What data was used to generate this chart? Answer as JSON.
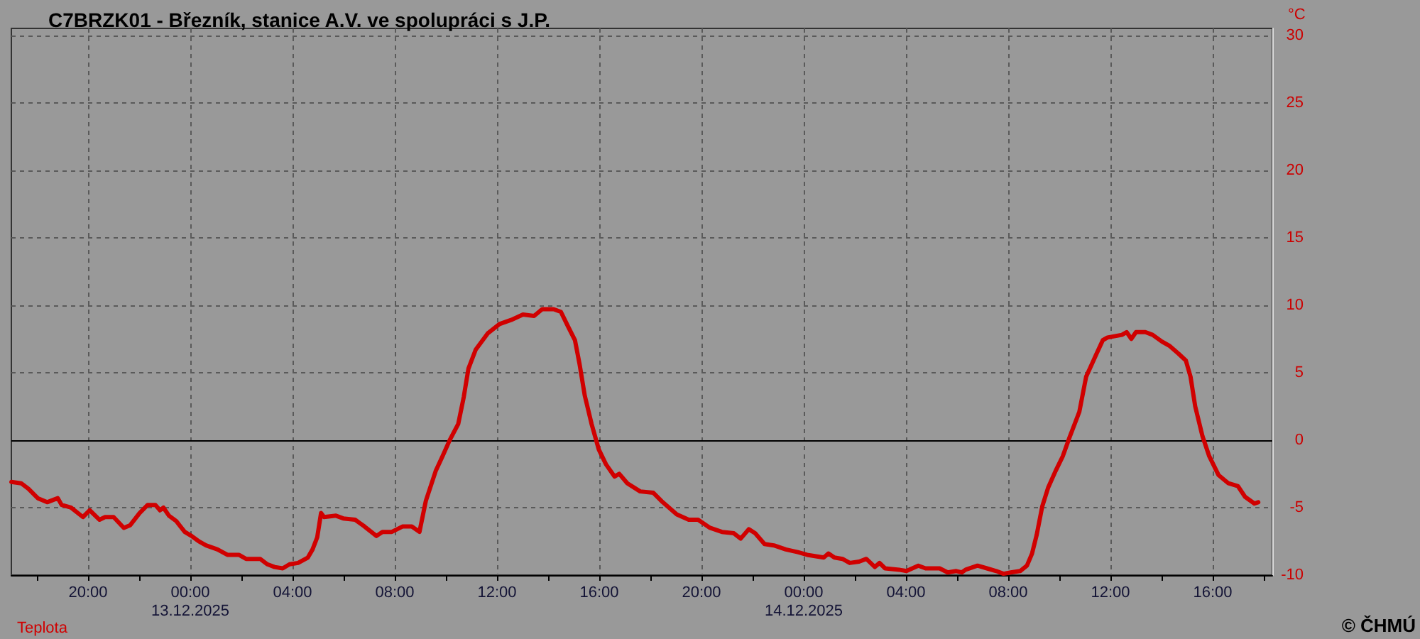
{
  "chart_data": {
    "type": "line",
    "title": "C7BRZK01 - Březník, stanice A.V. ve spolupráci s J.P.",
    "ylabel": "°C",
    "annotations": [
      "© ČHMÚ"
    ],
    "xlim": [
      "2025-12-12T17:00",
      "2025-12-14T18:20"
    ],
    "xticks": [
      {
        "value": "2025-12-12T18:00",
        "label": null
      },
      {
        "value": "2025-12-12T20:00",
        "label": "20:00"
      },
      {
        "value": "2025-12-12T22:00",
        "label": null
      },
      {
        "value": "2025-12-13T00:00",
        "label": "00:00\n13.12.2025"
      },
      {
        "value": "2025-12-13T02:00",
        "label": null
      },
      {
        "value": "2025-12-13T04:00",
        "label": "04:00"
      },
      {
        "value": "2025-12-13T06:00",
        "label": null
      },
      {
        "value": "2025-12-13T08:00",
        "label": "08:00"
      },
      {
        "value": "2025-12-13T10:00",
        "label": null
      },
      {
        "value": "2025-12-13T12:00",
        "label": "12:00"
      },
      {
        "value": "2025-12-13T14:00",
        "label": null
      },
      {
        "value": "2025-12-13T16:00",
        "label": "16:00"
      },
      {
        "value": "2025-12-13T18:00",
        "label": null
      },
      {
        "value": "2025-12-13T20:00",
        "label": "20:00"
      },
      {
        "value": "2025-12-13T22:00",
        "label": null
      },
      {
        "value": "2025-12-14T00:00",
        "label": "00:00\n14.12.2025"
      },
      {
        "value": "2025-12-14T02:00",
        "label": null
      },
      {
        "value": "2025-12-14T04:00",
        "label": "04:00"
      },
      {
        "value": "2025-12-14T06:00",
        "label": null
      },
      {
        "value": "2025-12-14T08:00",
        "label": "08:00"
      },
      {
        "value": "2025-12-14T10:00",
        "label": null
      },
      {
        "value": "2025-12-14T12:00",
        "label": "12:00"
      },
      {
        "value": "2025-12-14T14:00",
        "label": null
      },
      {
        "value": "2025-12-14T16:00",
        "label": "16:00"
      },
      {
        "value": "2025-12-14T18:00",
        "label": null
      }
    ],
    "ylim": [
      -10,
      30.5
    ],
    "yticks": [
      -10,
      -5,
      0,
      5,
      10,
      15,
      20,
      25,
      30
    ],
    "grid": true,
    "legend": "bottom left",
    "marker": "none",
    "line_style": "solid",
    "ref_lines": [
      {
        "axis": "y",
        "value": 0,
        "color": "#000000"
      }
    ],
    "series": [
      {
        "name": "Teplota",
        "color": "#d00000",
        "x": [
          "2025-12-12T17:00",
          "2025-12-12T17:23",
          "2025-12-12T17:40",
          "2025-12-12T18:02",
          "2025-12-12T18:24",
          "2025-12-12T18:49",
          "2025-12-12T18:58",
          "2025-12-12T19:20",
          "2025-12-12T19:48",
          "2025-12-12T20:04",
          "2025-12-12T20:27",
          "2025-12-12T20:40",
          "2025-12-12T21:00",
          "2025-12-12T21:24",
          "2025-12-12T21:39",
          "2025-12-12T22:01",
          "2025-12-12T22:20",
          "2025-12-12T22:38",
          "2025-12-12T22:49",
          "2025-12-12T22:57",
          "2025-12-12T23:10",
          "2025-12-12T23:27",
          "2025-12-12T23:47",
          "2025-12-13T00:03",
          "2025-12-13T00:20",
          "2025-12-13T00:37",
          "2025-12-13T01:04",
          "2025-12-13T01:27",
          "2025-12-13T01:54",
          "2025-12-13T02:11",
          "2025-12-13T02:44",
          "2025-12-13T03:01",
          "2025-12-13T03:18",
          "2025-12-13T03:37",
          "2025-12-13T03:53",
          "2025-12-13T04:13",
          "2025-12-13T04:36",
          "2025-12-13T04:47",
          "2025-12-13T04:58",
          "2025-12-13T05:07",
          "2025-12-13T05:14",
          "2025-12-13T05:42",
          "2025-12-13T05:59",
          "2025-12-13T06:27",
          "2025-12-13T06:49",
          "2025-12-13T07:17",
          "2025-12-13T07:31",
          "2025-12-13T07:53",
          "2025-12-13T08:18",
          "2025-12-13T08:40",
          "2025-12-13T08:58",
          "2025-12-13T09:13",
          "2025-12-13T09:36",
          "2025-12-13T09:52",
          "2025-12-13T10:09",
          "2025-12-13T10:29",
          "2025-12-13T10:42",
          "2025-12-13T10:53",
          "2025-12-13T11:10",
          "2025-12-13T11:38",
          "2025-12-13T12:06",
          "2025-12-13T12:33",
          "2025-12-13T13:01",
          "2025-12-13T13:27",
          "2025-12-13T13:46",
          "2025-12-13T14:13",
          "2025-12-13T14:30",
          "2025-12-13T14:47",
          "2025-12-13T15:03",
          "2025-12-13T15:14",
          "2025-12-13T15:26",
          "2025-12-13T15:42",
          "2025-12-13T15:59",
          "2025-12-13T16:16",
          "2025-12-13T16:36",
          "2025-12-13T16:47",
          "2025-12-13T17:06",
          "2025-12-13T17:36",
          "2025-12-13T18:07",
          "2025-12-13T18:29",
          "2025-12-13T19:02",
          "2025-12-13T19:30",
          "2025-12-13T19:52",
          "2025-12-13T20:20",
          "2025-12-13T20:48",
          "2025-12-13T21:16",
          "2025-12-13T21:32",
          "2025-12-13T21:51",
          "2025-12-13T22:06",
          "2025-12-13T22:28",
          "2025-12-13T22:50",
          "2025-12-13T23:18",
          "2025-12-13T23:46",
          "2025-12-14T00:08",
          "2025-12-14T00:47",
          "2025-12-14T00:58",
          "2025-12-14T01:12",
          "2025-12-14T01:31",
          "2025-12-14T01:48",
          "2025-12-14T02:10",
          "2025-12-14T02:27",
          "2025-12-14T02:47",
          "2025-12-14T02:58",
          "2025-12-14T03:11",
          "2025-12-14T03:44",
          "2025-12-14T04:01",
          "2025-12-14T04:29",
          "2025-12-14T04:46",
          "2025-12-14T05:19",
          "2025-12-14T05:38",
          "2025-12-14T05:58",
          "2025-12-14T06:11",
          "2025-12-14T06:20",
          "2025-12-14T06:48",
          "2025-12-14T07:10",
          "2025-12-14T07:32",
          "2025-12-14T07:49",
          "2025-12-14T08:06",
          "2025-12-14T08:28",
          "2025-12-14T08:44",
          "2025-12-14T08:56",
          "2025-12-14T09:07",
          "2025-12-14T09:20",
          "2025-12-14T09:34",
          "2025-12-14T09:51",
          "2025-12-14T10:08",
          "2025-12-14T10:24",
          "2025-12-14T10:47",
          "2025-12-14T11:03",
          "2025-12-14T11:26",
          "2025-12-14T11:42",
          "2025-12-14T11:53",
          "2025-12-14T12:27",
          "2025-12-14T12:38",
          "2025-12-14T12:49",
          "2025-12-14T13:00",
          "2025-12-14T13:22",
          "2025-12-14T13:39",
          "2025-12-14T14:01",
          "2025-12-14T14:18",
          "2025-12-14T14:40",
          "2025-12-14T14:57",
          "2025-12-14T15:08",
          "2025-12-14T15:19",
          "2025-12-14T15:36",
          "2025-12-14T15:52",
          "2025-12-14T16:14",
          "2025-12-14T16:37",
          "2025-12-14T16:59",
          "2025-12-14T17:16",
          "2025-12-14T17:38",
          "2025-12-14T17:47"
        ],
        "values": [
          -3.1,
          -3.2,
          -3.6,
          -4.3,
          -4.6,
          -4.3,
          -4.8,
          -5.0,
          -5.7,
          -5.2,
          -5.9,
          -5.7,
          -5.7,
          -6.5,
          -6.3,
          -5.4,
          -4.8,
          -4.8,
          -5.2,
          -5.0,
          -5.6,
          -6.0,
          -6.8,
          -7.1,
          -7.5,
          -7.8,
          -8.1,
          -8.5,
          -8.5,
          -8.8,
          -8.8,
          -9.2,
          -9.4,
          -9.5,
          -9.2,
          -9.1,
          -8.7,
          -8.1,
          -7.2,
          -5.4,
          -5.7,
          -5.6,
          -5.8,
          -5.9,
          -6.4,
          -7.1,
          -6.8,
          -6.8,
          -6.4,
          -6.4,
          -6.8,
          -4.5,
          -2.3,
          -1.2,
          0.0,
          1.2,
          3.2,
          5.3,
          6.7,
          7.9,
          8.6,
          8.9,
          9.3,
          9.2,
          9.7,
          9.7,
          9.5,
          8.4,
          7.4,
          5.6,
          3.3,
          1.2,
          -0.7,
          -1.8,
          -2.7,
          -2.5,
          -3.2,
          -3.8,
          -3.9,
          -4.6,
          -5.5,
          -5.9,
          -5.9,
          -6.5,
          -6.8,
          -6.9,
          -7.3,
          -6.6,
          -6.9,
          -7.7,
          -7.8,
          -8.1,
          -8.3,
          -8.5,
          -8.7,
          -8.4,
          -8.7,
          -8.8,
          -9.1,
          -9.0,
          -8.8,
          -9.4,
          -9.1,
          -9.5,
          -9.6,
          -9.7,
          -9.3,
          -9.5,
          -9.5,
          -9.8,
          -9.7,
          -9.8,
          -9.6,
          -9.3,
          -9.5,
          -9.7,
          -9.9,
          -9.8,
          -9.7,
          -9.3,
          -8.4,
          -7.0,
          -4.9,
          -3.5,
          -2.3,
          -1.2,
          0.2,
          2.1,
          4.7,
          6.3,
          7.4,
          7.6,
          7.8,
          8.0,
          7.5,
          8.0,
          8.0,
          7.8,
          7.3,
          7.0,
          6.4,
          5.9,
          4.7,
          2.5,
          0.3,
          -1.2,
          -2.6,
          -3.2,
          -3.4,
          -4.2,
          -4.7,
          -4.6
        ]
      }
    ]
  }
}
